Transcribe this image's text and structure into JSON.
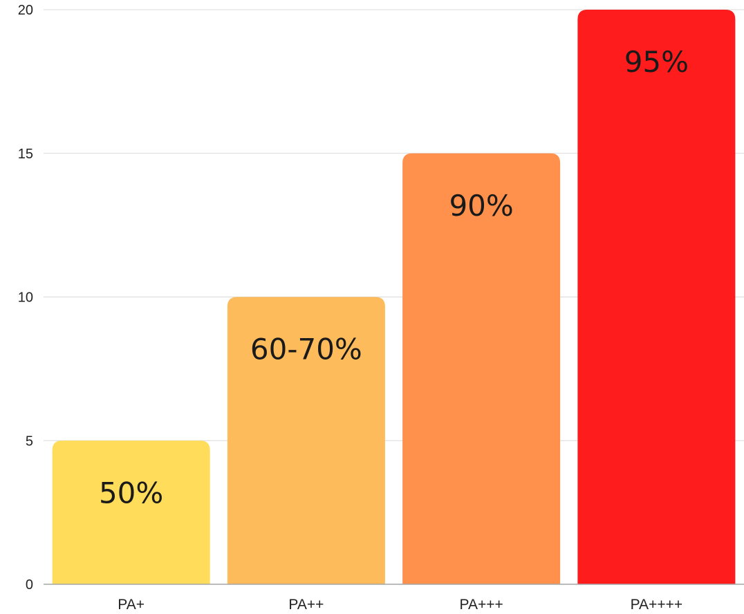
{
  "chart_data": {
    "type": "bar",
    "title": "",
    "xlabel": "",
    "ylabel": "",
    "categories": [
      "PA+",
      "PA++",
      "PA+++",
      "PA++++"
    ],
    "values": [
      5,
      10,
      15,
      20
    ],
    "data_labels": [
      "50%",
      "60-70%",
      "90%",
      "95%"
    ],
    "colors": [
      "#FFDC5A",
      "#FDBB5C",
      "#FF914D",
      "#FF1C1C"
    ],
    "ylim": [
      0,
      20
    ],
    "yticks": [
      0,
      5,
      10,
      15,
      20
    ],
    "grid": true,
    "legend": "none"
  }
}
